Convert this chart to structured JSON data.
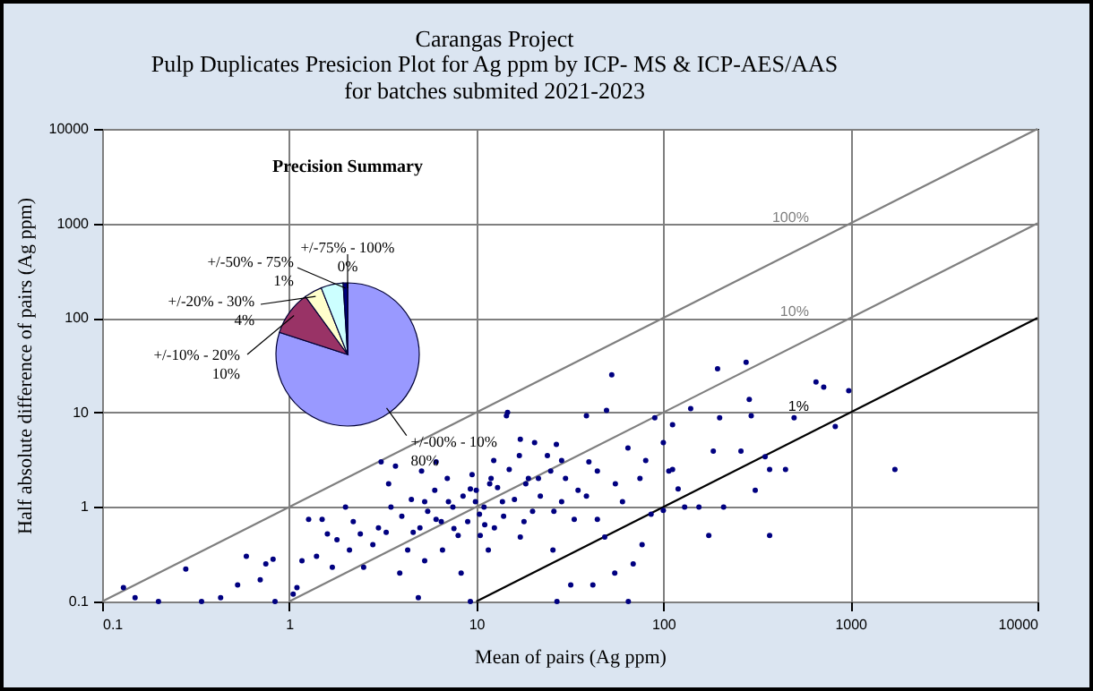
{
  "chart_data": [
    {
      "type": "scatter",
      "title": "Carangas Project",
      "subtitle": "Pulp Duplicates Presicion Plot for Ag ppm by ICP- MS & ICP-AES/AAS\nfor batches submited 2021-2023",
      "xlabel": "Mean of pairs (Ag ppm)",
      "ylabel": "Half absolute difference of pairs (Ag ppm)",
      "log": "xy",
      "xlim": [
        0.1,
        10000
      ],
      "ylim": [
        0.1,
        10000
      ],
      "xticks": [
        0.1,
        1,
        10,
        100,
        1000,
        10000
      ],
      "yticks": [
        0.1,
        1,
        10,
        100,
        1000,
        10000
      ],
      "grid": true,
      "legend": false,
      "series": [
        {
          "type": "scatter",
          "marker": "circle",
          "color": "#000080",
          "x": [
            0.13,
            0.15,
            0.2,
            0.28,
            0.34,
            0.43,
            0.53,
            0.59,
            0.7,
            0.75,
            0.82,
            0.84,
            1.05,
            1.1,
            1.17,
            1.27,
            1.4,
            1.5,
            1.6,
            1.7,
            1.8,
            2.0,
            2.1,
            2.2,
            2.4,
            2.5,
            2.8,
            3.0,
            3.1,
            3.3,
            3.4,
            3.5,
            3.7,
            3.9,
            4.0,
            4.3,
            4.5,
            4.6,
            4.9,
            5.0,
            5.1,
            5.3,
            5.3,
            5.5,
            6.0,
            6.1,
            6.1,
            6.5,
            6.6,
            7.0,
            7.1,
            7.5,
            7.6,
            8.0,
            8.3,
            8.5,
            9.0,
            9.3,
            9.3,
            9.5,
            9.9,
            10.0,
            10.4,
            10.5,
            11.0,
            11.1,
            11.6,
            11.8,
            12.0,
            12.4,
            12.5,
            13.0,
            13.8,
            14.0,
            14.5,
            14.7,
            15.0,
            16.0,
            17.0,
            17.2,
            17.2,
            18.0,
            18.4,
            19.0,
            20.0,
            20.5,
            21.5,
            22.0,
            24.0,
            25.0,
            25.7,
            26.0,
            26.8,
            27.0,
            28.6,
            28.6,
            30.0,
            32.0,
            33.4,
            35.0,
            38.8,
            38.8,
            40.0,
            42.0,
            44.4,
            44.4,
            48.6,
            49.7,
            53.0,
            55.0,
            55.4,
            60.5,
            64.7,
            65.0,
            69.0,
            75.0,
            77.0,
            80.5,
            86.0,
            90.0,
            100.0,
            100.0,
            107.0,
            112.0,
            112.0,
            120.0,
            130.0,
            140.0,
            155.0,
            175.0,
            185.0,
            195.0,
            200.0,
            210.0,
            260.0,
            277.0,
            288.0,
            295.0,
            310.0,
            350.0,
            370.0,
            370.0,
            450.0,
            500.0,
            655.0,
            720.0,
            830.0,
            980.0,
            1730.0
          ],
          "values": [
            0.14,
            0.11,
            0.1,
            0.22,
            0.1,
            0.11,
            0.15,
            0.3,
            0.17,
            0.25,
            0.28,
            0.1,
            0.12,
            0.14,
            0.27,
            0.74,
            0.3,
            0.74,
            0.52,
            0.23,
            0.45,
            1.0,
            0.35,
            0.7,
            0.52,
            0.23,
            0.4,
            0.6,
            3.0,
            0.54,
            1.76,
            1.0,
            2.7,
            0.2,
            0.8,
            0.35,
            1.2,
            0.54,
            0.11,
            0.6,
            2.4,
            1.14,
            0.27,
            0.9,
            1.5,
            3.0,
            0.74,
            0.7,
            0.35,
            2.0,
            1.14,
            1.0,
            0.59,
            0.5,
            0.2,
            1.3,
            0.7,
            1.55,
            0.1,
            2.2,
            1.14,
            1.5,
            0.84,
            0.5,
            1.0,
            0.65,
            0.35,
            1.76,
            2.0,
            3.1,
            0.6,
            1.6,
            1.14,
            0.8,
            9.2,
            10.0,
            2.5,
            1.2,
            3.5,
            0.48,
            5.2,
            0.7,
            1.76,
            2.0,
            0.9,
            4.8,
            2.0,
            1.3,
            3.5,
            2.4,
            0.35,
            0.9,
            4.6,
            0.1,
            1.14,
            3.1,
            2.0,
            0.15,
            0.74,
            1.5,
            9.2,
            1.3,
            3.0,
            0.15,
            2.4,
            0.74,
            0.48,
            10.5,
            25.0,
            0.2,
            1.76,
            1.14,
            4.2,
            0.1,
            0.25,
            2.0,
            0.4,
            3.1,
            0.84,
            8.8,
            4.8,
            0.92,
            2.4,
            7.4,
            2.5,
            1.55,
            1.0,
            11.0,
            1.0,
            0.5,
            3.9,
            29.0,
            8.8,
            1.0,
            3.9,
            34.0,
            13.7,
            9.2,
            1.5,
            3.4,
            2.5,
            0.5,
            2.5,
            8.8,
            21.0,
            18.5,
            7.1,
            17.0,
            2.5
          ]
        },
        {
          "type": "line",
          "name": "100%",
          "color": "#7f7f7f",
          "x": [
            0.1,
            10000
          ],
          "values": [
            0.1,
            10000
          ]
        },
        {
          "type": "line",
          "name": "10%",
          "color": "#7f7f7f",
          "x": [
            1,
            10000
          ],
          "values": [
            0.1,
            1000
          ]
        },
        {
          "type": "line",
          "name": "1%",
          "color": "#000000",
          "x": [
            10,
            10000
          ],
          "values": [
            0.1,
            100
          ]
        }
      ]
    },
    {
      "type": "pie",
      "title": "Precision Summary",
      "legend": false,
      "categories": [
        "+/-00% - 10%",
        "+/-10% - 20%",
        "+/-20% - 30%",
        null,
        "+/-50% - 75%",
        "+/-75% - 100%"
      ],
      "values": [
        80,
        10,
        4,
        5,
        1,
        0
      ],
      "value_labels": [
        "80%",
        "10%",
        "4%",
        null,
        "1%",
        "0%"
      ],
      "colors": [
        "#9999ff",
        "#993366",
        "#ffffcc",
        "#ccffff",
        "#000080",
        "#ff8080"
      ]
    }
  ]
}
